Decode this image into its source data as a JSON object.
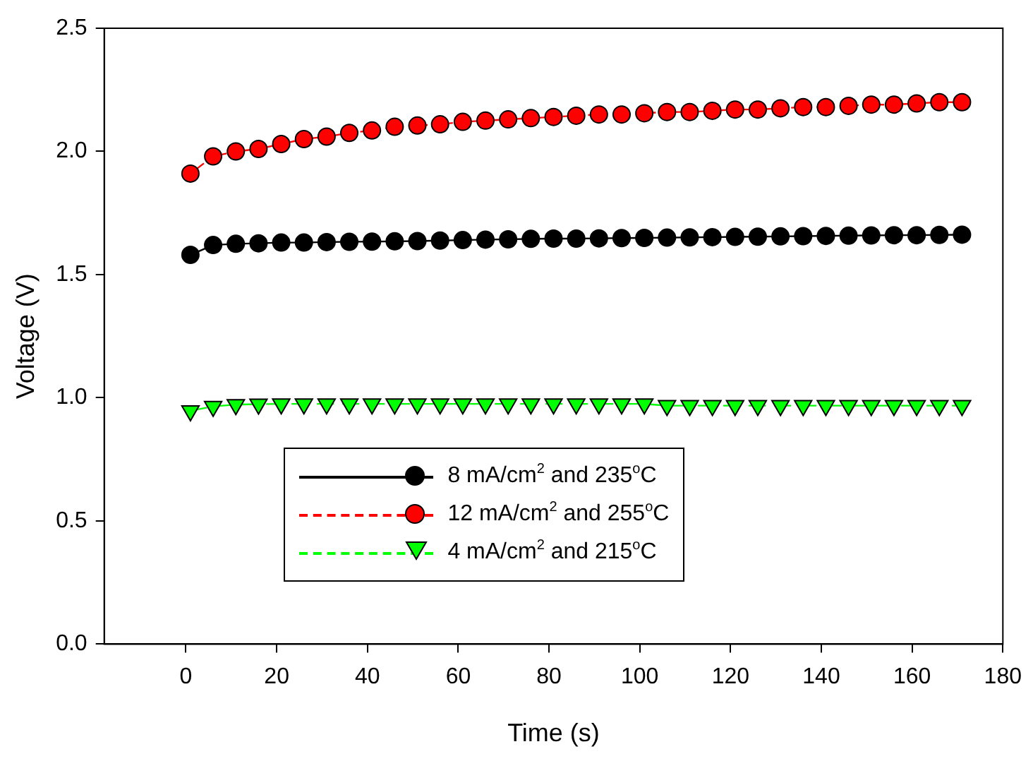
{
  "chart_data": {
    "type": "line",
    "xlabel": "Time (s)",
    "ylabel": "Voltage (V)",
    "x": [
      1,
      6,
      11,
      16,
      21,
      26,
      31,
      36,
      41,
      46,
      51,
      56,
      61,
      66,
      71,
      76,
      81,
      86,
      91,
      96,
      101,
      106,
      111,
      116,
      121,
      126,
      131,
      136,
      141,
      146,
      151,
      156,
      161,
      166,
      171
    ],
    "series": [
      {
        "name": "8 mA/cm$^{2}$ and 235$^{o}$C",
        "color": "#000000",
        "marker": "circle",
        "line_style": "solid",
        "values": [
          1.58,
          1.62,
          1.625,
          1.627,
          1.63,
          1.63,
          1.632,
          1.633,
          1.634,
          1.635,
          1.636,
          1.638,
          1.64,
          1.642,
          1.643,
          1.645,
          1.646,
          1.646,
          1.647,
          1.648,
          1.649,
          1.65,
          1.651,
          1.652,
          1.653,
          1.654,
          1.655,
          1.656,
          1.657,
          1.658,
          1.659,
          1.66,
          1.66,
          1.661,
          1.662
        ]
      },
      {
        "name": "12 mA/cm$^{2}$ and 255$^{o}$C",
        "color": "#ff0000",
        "marker": "circle",
        "line_style": "dashed",
        "values": [
          1.91,
          1.98,
          2.0,
          2.01,
          2.03,
          2.05,
          2.06,
          2.075,
          2.085,
          2.1,
          2.105,
          2.11,
          2.12,
          2.125,
          2.13,
          2.135,
          2.14,
          2.145,
          2.15,
          2.15,
          2.155,
          2.16,
          2.16,
          2.165,
          2.17,
          2.17,
          2.175,
          2.18,
          2.18,
          2.185,
          2.19,
          2.19,
          2.195,
          2.2,
          2.2
        ]
      },
      {
        "name": "4 mA/cm$^{2}$ and 215$^{o}$C",
        "color": "#00ff00",
        "marker": "triangle",
        "line_style": "dashed",
        "values": [
          0.947,
          0.965,
          0.972,
          0.974,
          0.975,
          0.975,
          0.975,
          0.975,
          0.975,
          0.975,
          0.975,
          0.975,
          0.975,
          0.975,
          0.975,
          0.975,
          0.975,
          0.975,
          0.975,
          0.975,
          0.975,
          0.968,
          0.968,
          0.968,
          0.968,
          0.968,
          0.968,
          0.968,
          0.968,
          0.968,
          0.968,
          0.968,
          0.968,
          0.968,
          0.968
        ]
      }
    ],
    "xlim": [
      -18,
      180
    ],
    "xticks": [
      0,
      20,
      40,
      60,
      80,
      100,
      120,
      140,
      160,
      180
    ],
    "ylim": [
      0,
      2.5
    ],
    "yticks": [
      {
        "value": 0,
        "label": "0.0"
      },
      0.5,
      {
        "value": 1,
        "label": "1.0"
      },
      1.5,
      {
        "value": 2,
        "label": "2.0"
      },
      2.5
    ],
    "grid": false,
    "legend": "bottom"
  }
}
